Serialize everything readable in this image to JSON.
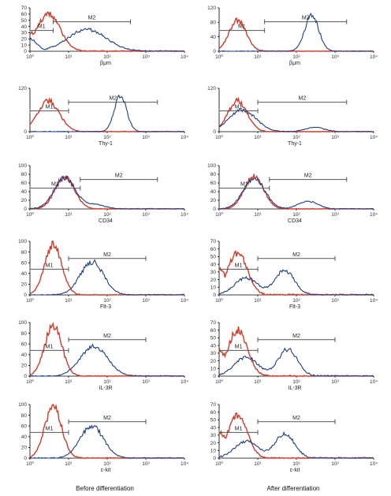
{
  "footer": {
    "left": "Before differentiation",
    "right": "After differentiation"
  },
  "colors": {
    "control": "#d43a2a",
    "sample": "#1f3d86",
    "control_dark": "#c9521e",
    "gate": "#555555"
  },
  "chart_data": [
    {
      "type": "line",
      "xlabel": "βμm",
      "xscale": "log",
      "xlim": [
        1,
        10000
      ],
      "ylim": [
        0,
        70
      ],
      "yticks": [
        "0",
        "10",
        "20",
        "30",
        "40",
        "50",
        "60",
        "70"
      ],
      "xticks": [
        "10⁰",
        "10¹",
        "10²",
        "10³",
        "10⁴"
      ],
      "gates": [
        {
          "label": "M1",
          "from": 1,
          "to": 4
        },
        {
          "label": "M2",
          "from": 4,
          "to": 400
        }
      ],
      "series": [
        {
          "role": "control",
          "peak": 3,
          "height": 60,
          "width": 0.3,
          "base": 30
        },
        {
          "role": "sample",
          "peak": 30,
          "height": 35,
          "width": 0.5,
          "base": 20
        }
      ]
    },
    {
      "type": "line",
      "xlabel": "βμm",
      "xscale": "log",
      "xlim": [
        1,
        10000
      ],
      "ylim": [
        0,
        120
      ],
      "yticks": [
        "0",
        "40",
        "80",
        "120"
      ],
      "xticks": [
        "10⁰",
        "10¹",
        "10²",
        "10³",
        "10⁴"
      ],
      "gates": [
        {
          "label": "M1",
          "from": 1,
          "to": 15
        },
        {
          "label": "M2",
          "from": 15,
          "to": 2000
        }
      ],
      "series": [
        {
          "role": "control",
          "peak": 3,
          "height": 85,
          "width": 0.22
        },
        {
          "role": "sample",
          "peak": 250,
          "height": 100,
          "width": 0.18
        }
      ]
    },
    {
      "type": "line",
      "xlabel": "Thy-1",
      "xscale": "log",
      "xlim": [
        1,
        10000
      ],
      "ylim": [
        0,
        120
      ],
      "yticks": [
        "0",
        "120"
      ],
      "xticks": [
        "10⁰",
        "10¹",
        "10²",
        "10³",
        "10⁴"
      ],
      "gates": [
        {
          "label": "M1",
          "from": 1,
          "to": 10
        },
        {
          "label": "M2",
          "from": 10,
          "to": 2000
        }
      ],
      "series": [
        {
          "role": "control",
          "peak": 3,
          "height": 85,
          "width": 0.28
        },
        {
          "role": "sample",
          "peak": 220,
          "height": 100,
          "width": 0.16
        }
      ]
    },
    {
      "type": "line",
      "xlabel": "Thy-1",
      "xscale": "log",
      "xlim": [
        1,
        10000
      ],
      "ylim": [
        0,
        120
      ],
      "yticks": [
        "0",
        "120"
      ],
      "xticks": [
        "10⁰",
        "10¹",
        "10²",
        "10³",
        "10⁴"
      ],
      "gates": [
        {
          "label": "M1",
          "from": 1,
          "to": 10
        },
        {
          "label": "M2",
          "from": 10,
          "to": 2000
        }
      ],
      "series": [
        {
          "role": "control",
          "peak": 3,
          "height": 85,
          "width": 0.25
        },
        {
          "role": "sample",
          "peak": 4,
          "height": 60,
          "width": 0.35,
          "tail": 300,
          "tailh": 12
        }
      ]
    },
    {
      "type": "line",
      "xlabel": "CD34",
      "xscale": "log",
      "xlim": [
        1,
        10000
      ],
      "ylim": [
        0,
        100
      ],
      "yticks": [
        "0",
        "20",
        "40",
        "60",
        "80",
        "100"
      ],
      "xticks": [
        "10⁰",
        "10¹",
        "10²",
        "10³",
        "10⁴"
      ],
      "gates": [
        {
          "label": "M1",
          "from": 1,
          "to": 20
        },
        {
          "label": "M2",
          "from": 20,
          "to": 2000
        }
      ],
      "series": [
        {
          "role": "control",
          "peak": 8,
          "height": 75,
          "width": 0.25
        },
        {
          "role": "sample",
          "peak": 8,
          "height": 70,
          "width": 0.28,
          "tail": 50,
          "tailh": 10
        }
      ]
    },
    {
      "type": "line",
      "xlabel": "CD34",
      "xscale": "log",
      "xlim": [
        1,
        10000
      ],
      "ylim": [
        0,
        100
      ],
      "yticks": [
        "0",
        "20",
        "40",
        "60",
        "80",
        "100"
      ],
      "xticks": [
        "10⁰",
        "10¹",
        "10²",
        "10³",
        "10⁴"
      ],
      "gates": [
        {
          "label": "M1",
          "from": 1,
          "to": 20
        },
        {
          "label": "M2",
          "from": 20,
          "to": 2000
        }
      ],
      "series": [
        {
          "role": "control",
          "peak": 8,
          "height": 75,
          "width": 0.25
        },
        {
          "role": "sample",
          "peak": 8,
          "height": 70,
          "width": 0.28,
          "tail": 200,
          "tailh": 18
        }
      ]
    },
    {
      "type": "line",
      "xlabel": "Flt-3",
      "xscale": "log",
      "xlim": [
        1,
        10000
      ],
      "ylim": [
        0,
        100
      ],
      "yticks": [
        "0",
        "20",
        "40",
        "60",
        "80",
        "100"
      ],
      "xticks": [
        "10⁰",
        "10¹",
        "10²",
        "10³",
        "10⁴"
      ],
      "gates": [
        {
          "label": "M1",
          "from": 1,
          "to": 10
        },
        {
          "label": "M2",
          "from": 10,
          "to": 1000
        }
      ],
      "series": [
        {
          "role": "control",
          "peak": 4,
          "height": 95,
          "width": 0.22
        },
        {
          "role": "sample",
          "peak": 40,
          "height": 62,
          "width": 0.3
        }
      ]
    },
    {
      "type": "line",
      "xlabel": "Flt-3",
      "xscale": "log",
      "xlim": [
        1,
        10000
      ],
      "ylim": [
        0,
        70
      ],
      "yticks": [
        "0",
        "10",
        "20",
        "30",
        "40",
        "50",
        "60",
        "70"
      ],
      "xticks": [
        "10⁰",
        "10¹",
        "10²",
        "10³",
        "10⁴"
      ],
      "gates": [
        {
          "label": "M1",
          "from": 1,
          "to": 10
        },
        {
          "label": "M2",
          "from": 10,
          "to": 1000
        }
      ],
      "series": [
        {
          "role": "control",
          "peak": 3,
          "height": 55,
          "width": 0.25,
          "base": 35
        },
        {
          "role": "sample",
          "peak": 5,
          "height": 22,
          "width": 0.3,
          "tail": 50,
          "tailh": 32
        }
      ]
    },
    {
      "type": "line",
      "xlabel": "IL-3R",
      "xscale": "log",
      "xlim": [
        1,
        10000
      ],
      "ylim": [
        0,
        100
      ],
      "yticks": [
        "0",
        "20",
        "40",
        "60",
        "80",
        "100"
      ],
      "xticks": [
        "10⁰",
        "10¹",
        "10²",
        "10³",
        "10⁴"
      ],
      "gates": [
        {
          "label": "M1",
          "from": 1,
          "to": 10
        },
        {
          "label": "M2",
          "from": 10,
          "to": 1000
        }
      ],
      "series": [
        {
          "role": "control",
          "peak": 4,
          "height": 95,
          "width": 0.22
        },
        {
          "role": "sample",
          "peak": 45,
          "height": 55,
          "width": 0.35
        }
      ]
    },
    {
      "type": "line",
      "xlabel": "IL-3R",
      "xscale": "log",
      "xlim": [
        1,
        10000
      ],
      "ylim": [
        0,
        70
      ],
      "yticks": [
        "0",
        "10",
        "20",
        "30",
        "40",
        "50",
        "60",
        "70"
      ],
      "xticks": [
        "10⁰",
        "10¹",
        "10²",
        "10³",
        "10⁴"
      ],
      "gates": [
        {
          "label": "M1",
          "from": 1,
          "to": 10
        },
        {
          "label": "M2",
          "from": 10,
          "to": 1000
        }
      ],
      "series": [
        {
          "role": "control",
          "peak": 3,
          "height": 60,
          "width": 0.25,
          "base": 35
        },
        {
          "role": "sample",
          "peak": 5,
          "height": 25,
          "width": 0.3,
          "tail": 60,
          "tailh": 35
        }
      ]
    },
    {
      "type": "line",
      "xlabel": "c-kit",
      "xscale": "log",
      "xlim": [
        1,
        10000
      ],
      "ylim": [
        0,
        100
      ],
      "yticks": [
        "0",
        "20",
        "40",
        "60",
        "80",
        "100"
      ],
      "xticks": [
        "10⁰",
        "10¹",
        "10²",
        "10³",
        "10⁴"
      ],
      "gates": [
        {
          "label": "M1",
          "from": 1,
          "to": 10
        },
        {
          "label": "M2",
          "from": 10,
          "to": 1000
        }
      ],
      "series": [
        {
          "role": "control",
          "peak": 4,
          "height": 95,
          "width": 0.22
        },
        {
          "role": "sample",
          "peak": 40,
          "height": 60,
          "width": 0.3
        }
      ]
    },
    {
      "type": "line",
      "xlabel": "c-kit",
      "xscale": "log",
      "xlim": [
        1,
        10000
      ],
      "ylim": [
        0,
        70
      ],
      "yticks": [
        "0",
        "10",
        "20",
        "30",
        "40",
        "50",
        "60",
        "70"
      ],
      "xticks": [
        "10⁰",
        "10¹",
        "10²",
        "10³",
        "10⁴"
      ],
      "gates": [
        {
          "label": "M1",
          "from": 1,
          "to": 10
        },
        {
          "label": "M2",
          "from": 10,
          "to": 1000
        }
      ],
      "series": [
        {
          "role": "control",
          "peak": 3,
          "height": 55,
          "width": 0.25,
          "base": 35
        },
        {
          "role": "sample",
          "peak": 5,
          "height": 22,
          "width": 0.3,
          "tail": 50,
          "tailh": 32
        }
      ]
    }
  ]
}
